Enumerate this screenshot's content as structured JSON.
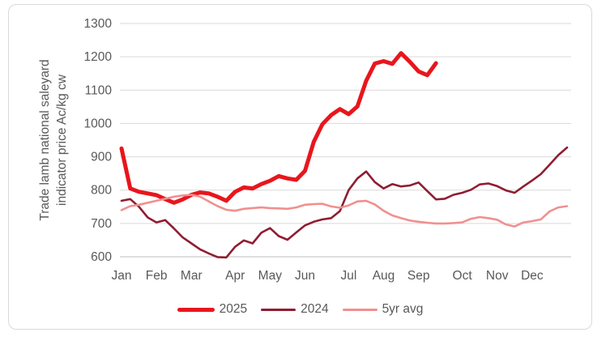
{
  "chart": {
    "border_color": "#d9d9d9",
    "gridline_color": "#d9d9d9",
    "axis_line_color": "#bfbfbf",
    "axis_text_color": "#595959",
    "legend_text_color": "#595959",
    "background": "#ffffff"
  },
  "chart_data": {
    "type": "line",
    "title": "",
    "ylabel": "Trade lamb national saleyard indicator price Ac/kg cw",
    "ylabel_lines": [
      "Trade lamb national saleyard",
      "indicator price Ac/kg cw"
    ],
    "ylim": [
      600,
      1300
    ],
    "yticks": [
      600,
      700,
      800,
      900,
      1000,
      1100,
      1200,
      1300
    ],
    "x_unit": "week-of-year",
    "weeks_total": 52,
    "xtick_labels": [
      "Jan",
      "Feb",
      "Mar",
      "Apr",
      "May",
      "Jun",
      "Jul",
      "Aug",
      "Sep",
      "Oct",
      "Nov",
      "Dec"
    ],
    "xtick_week_positions": [
      1,
      5,
      9,
      14,
      18,
      22,
      27,
      31,
      35,
      40,
      44,
      48
    ],
    "grid": "horizontal-only",
    "legend_position": "bottom-center",
    "series": [
      {
        "name": "2025",
        "color": "#e8161d",
        "stroke_width": 5,
        "start_week": 1,
        "values": [
          925,
          805,
          795,
          790,
          785,
          773,
          762,
          772,
          786,
          793,
          790,
          780,
          768,
          795,
          808,
          805,
          818,
          828,
          842,
          835,
          831,
          858,
          945,
          998,
          1025,
          1043,
          1028,
          1051,
          1128,
          1180,
          1187,
          1179,
          1211,
          1185,
          1156,
          1145,
          1181
        ]
      },
      {
        "name": "2024",
        "color": "#8f1d32",
        "stroke_width": 2.6,
        "start_week": 1,
        "values": [
          768,
          773,
          750,
          718,
          703,
          710,
          685,
          658,
          640,
          622,
          610,
          599,
          598,
          630,
          649,
          640,
          672,
          686,
          662,
          651,
          673,
          694,
          705,
          712,
          716,
          737,
          800,
          835,
          856,
          824,
          805,
          818,
          811,
          814,
          823,
          797,
          772,
          774,
          786,
          792,
          801,
          817,
          820,
          812,
          799,
          792,
          811,
          829,
          848,
          876,
          905,
          928
        ]
      },
      {
        "name": "5yr avg",
        "color": "#f0908f",
        "stroke_width": 2.6,
        "start_week": 1,
        "values": [
          740,
          752,
          756,
          762,
          768,
          774,
          780,
          784,
          786,
          780,
          766,
          752,
          741,
          738,
          744,
          746,
          748,
          746,
          745,
          744,
          748,
          756,
          758,
          759,
          751,
          747,
          754,
          766,
          768,
          757,
          738,
          724,
          716,
          709,
          705,
          702,
          700,
          700,
          701,
          703,
          714,
          719,
          716,
          711,
          697,
          691,
          703,
          707,
          712,
          736,
          748,
          752
        ]
      }
    ]
  }
}
